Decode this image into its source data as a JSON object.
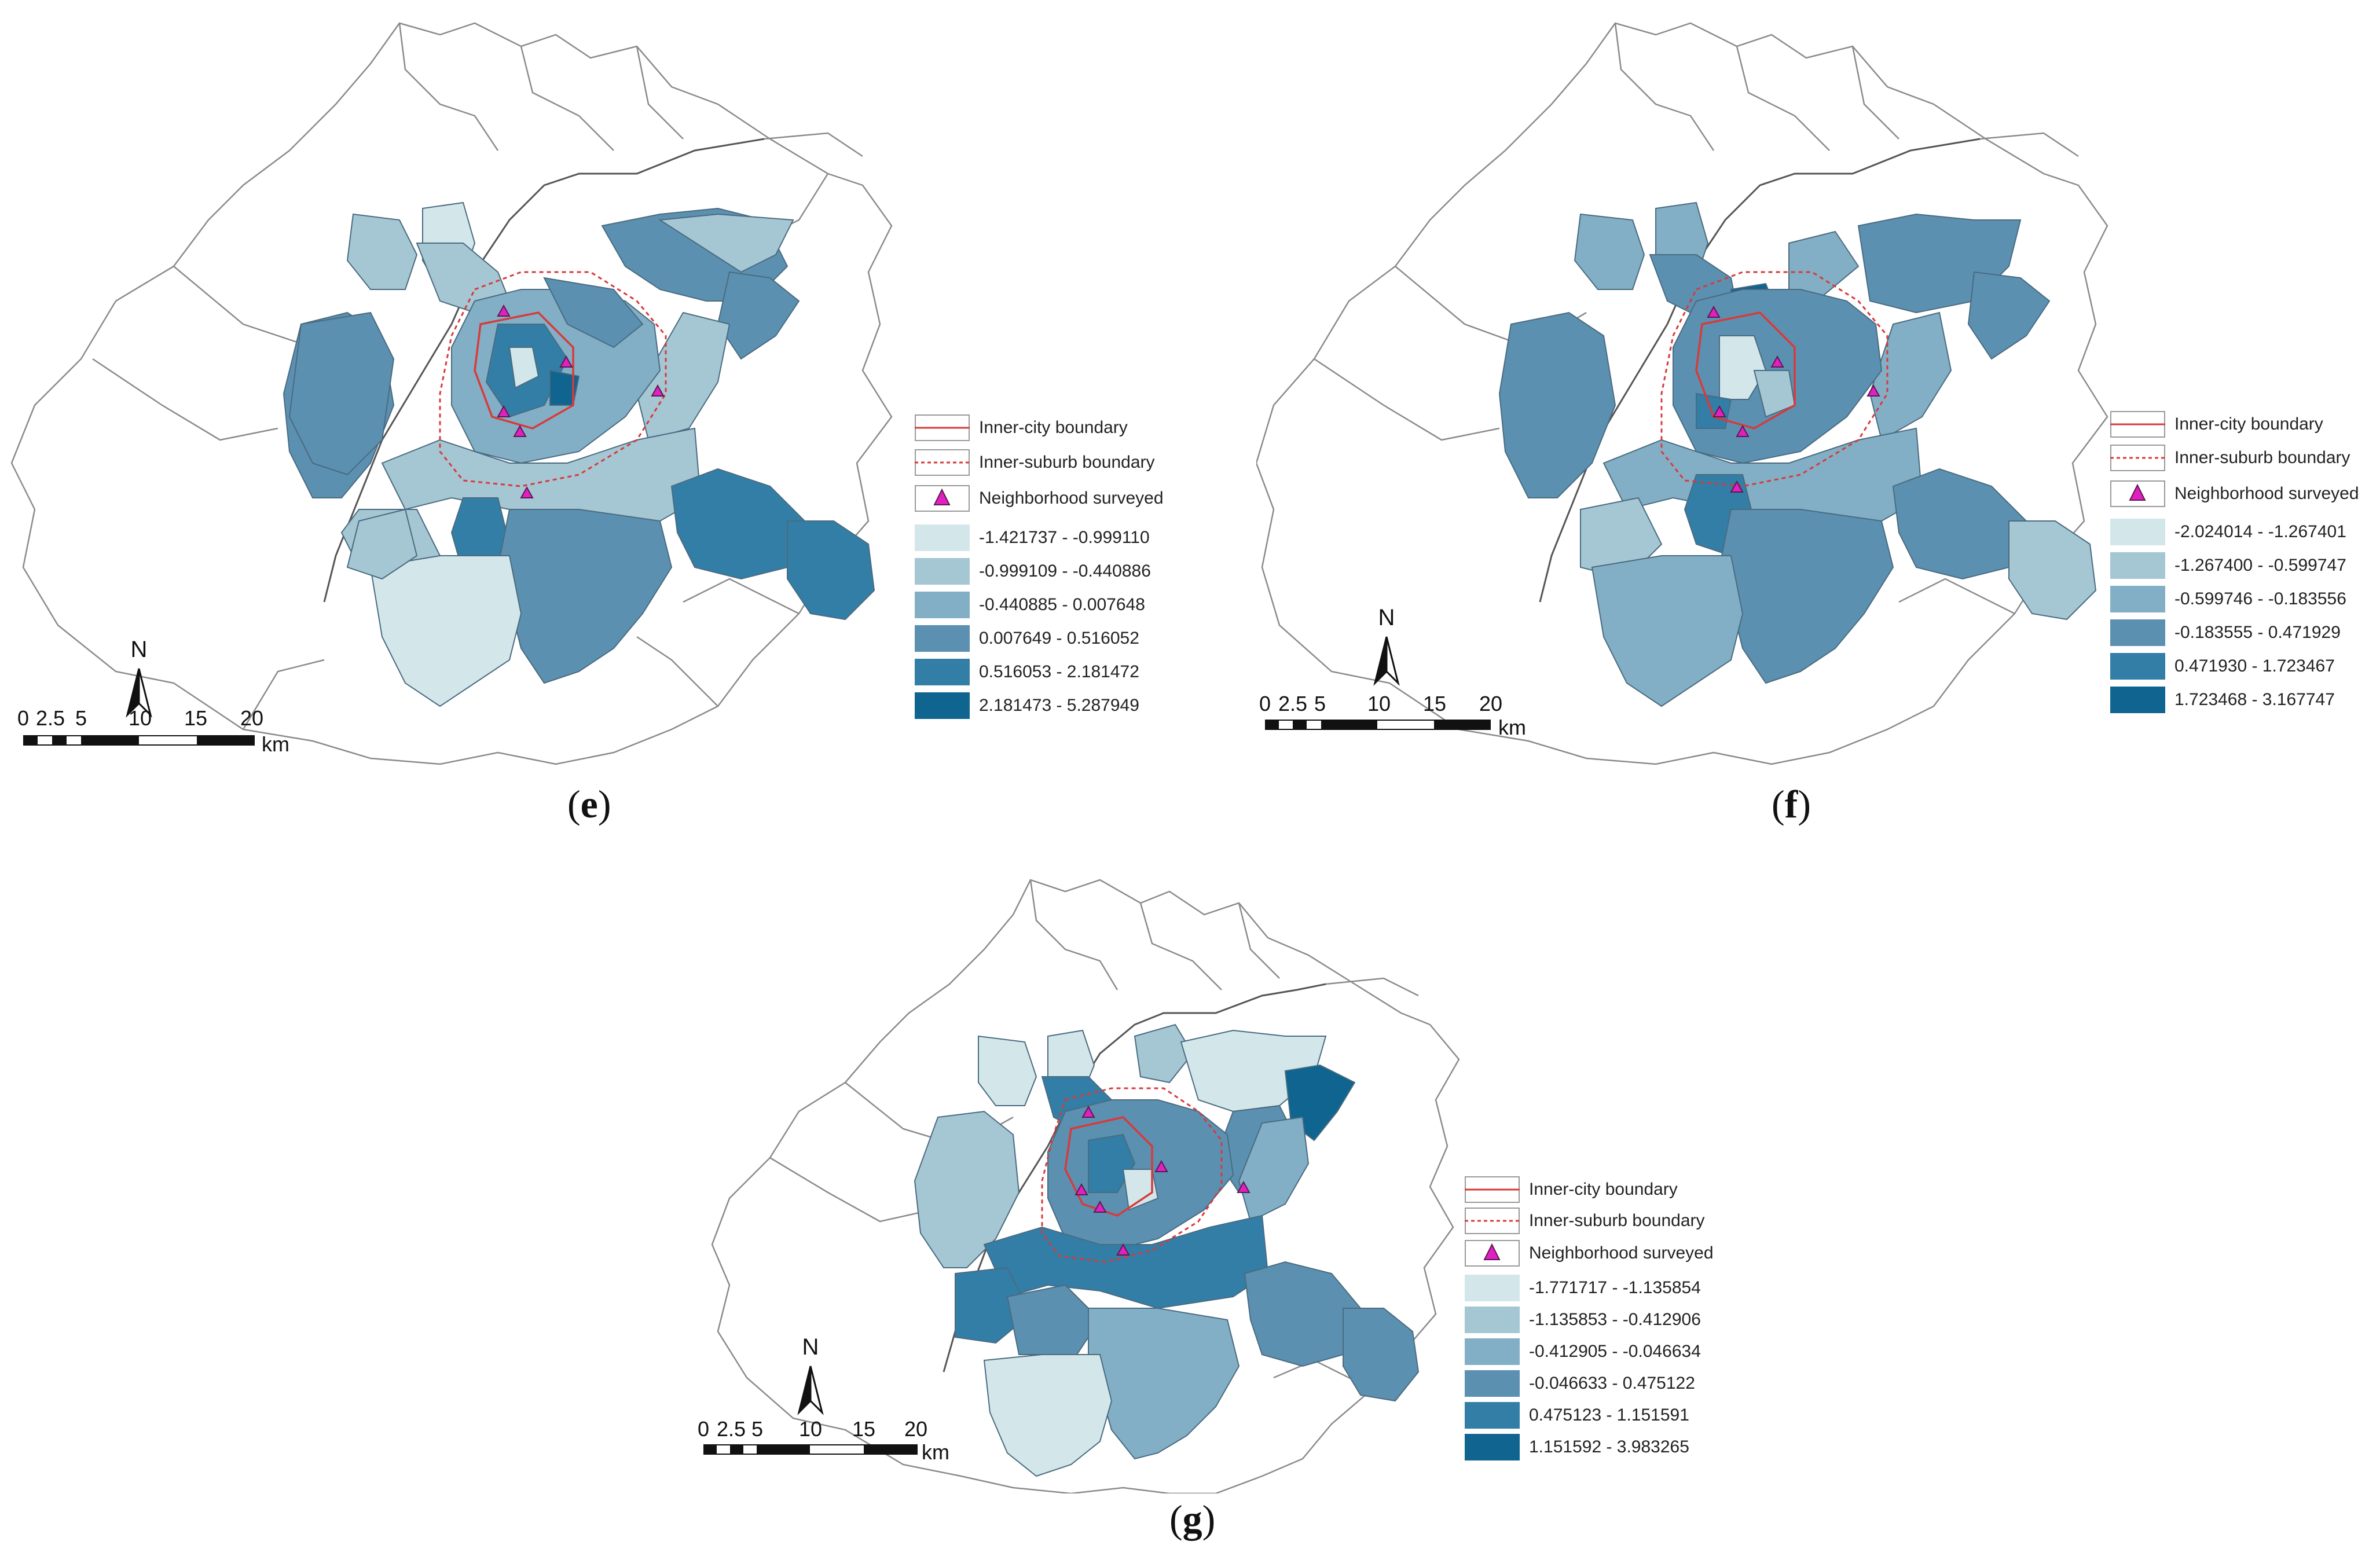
{
  "legend_common": {
    "inner_city": "Inner-city boundary",
    "inner_suburb": "Inner-suburb boundary",
    "neighborhood": "Neighborhood surveyed"
  },
  "colors": {
    "class1": "#d3e7eb",
    "class2": "#a5c6d3",
    "class3": "#82afc5",
    "class4": "#5b90b1",
    "class5": "#327ea6",
    "class6": "#0f6490",
    "inner_city_line": "#d83a3a",
    "triangle": "#e020c0",
    "context_line": "#8a8a8a"
  },
  "panels": [
    {
      "caption_letter": "e",
      "classes": [
        "-1.421737 - -0.999110",
        "-0.999109 - -0.440886",
        "-0.440885 - 0.007648",
        "0.007649 - 0.516052",
        "0.516053 - 2.181472",
        "2.181473 - 5.287949"
      ]
    },
    {
      "caption_letter": "f",
      "classes": [
        "-2.024014 - -1.267401",
        "-1.267400 - -0.599747",
        "-0.599746 - -0.183556",
        "-0.183555 - 0.471929",
        "0.471930 - 1.723467",
        "1.723468 - 3.167747"
      ]
    },
    {
      "caption_letter": "g",
      "classes": [
        "-1.771717 - -1.135854",
        "-1.135853 - -0.412906",
        "-0.412905 - -0.046634",
        "-0.046633 - 0.475122",
        "0.475123 - 1.151591",
        "1.151592 - 3.983265"
      ]
    }
  ],
  "scale": {
    "ticks": [
      "0",
      "2.5",
      "5",
      "10",
      "15",
      "20"
    ],
    "unit": "km"
  },
  "north_label": "N",
  "caption_paren_open": "(",
  "caption_paren_close": ")"
}
